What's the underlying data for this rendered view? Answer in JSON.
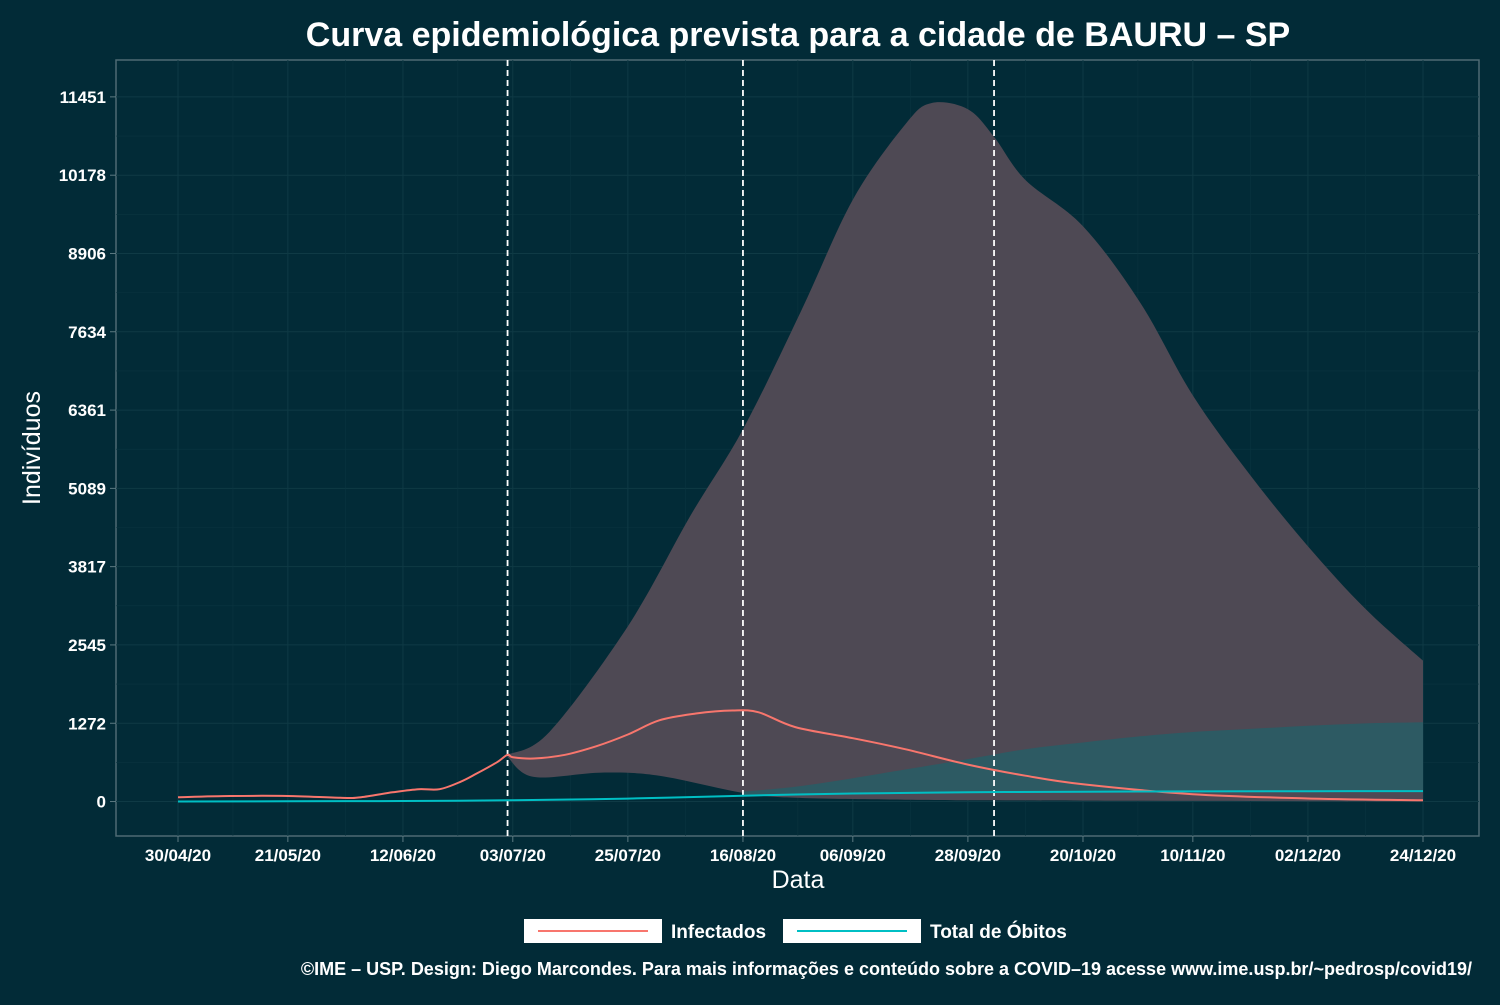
{
  "chart_data": {
    "type": "line",
    "title": "Curva epidemiológica prevista para a cidade de BAURU – SP",
    "xlabel": "Data",
    "ylabel": "Indivíduos",
    "x_tick_labels": [
      "30/04/20",
      "21/05/20",
      "12/06/20",
      "03/07/20",
      "25/07/20",
      "16/08/20",
      "06/09/20",
      "28/09/20",
      "20/10/20",
      "10/11/20",
      "02/12/20",
      "24/12/20"
    ],
    "y_tick_labels": [
      "0",
      "1272",
      "2545",
      "3817",
      "5089",
      "6361",
      "7634",
      "8906",
      "10178",
      "11451"
    ],
    "ylim": [
      -560,
      12050
    ],
    "grid": true,
    "legend_position": "bottom",
    "x_start": "30/04/20",
    "x_end": "24/12/20",
    "vertical_markers": [
      "02/07/20",
      "16/08/20",
      "03/10/20"
    ],
    "series": [
      {
        "name": "Infectados",
        "color": "#f8766d",
        "points": [
          [
            "30/04/20",
            70
          ],
          [
            "10/05/20",
            90
          ],
          [
            "21/05/20",
            90
          ],
          [
            "31/05/20",
            60
          ],
          [
            "04/06/20",
            70
          ],
          [
            "10/06/20",
            150
          ],
          [
            "15/06/20",
            200
          ],
          [
            "19/06/20",
            200
          ],
          [
            "23/06/20",
            320
          ],
          [
            "26/06/20",
            450
          ],
          [
            "30/06/20",
            640
          ],
          [
            "02/07/20",
            760
          ],
          [
            "03/07/20",
            720
          ],
          [
            "07/07/20",
            700
          ],
          [
            "13/07/20",
            760
          ],
          [
            "19/07/20",
            900
          ],
          [
            "25/07/20",
            1090
          ],
          [
            "31/07/20",
            1320
          ],
          [
            "07/08/20",
            1430
          ],
          [
            "14/08/20",
            1480
          ],
          [
            "19/08/20",
            1450
          ],
          [
            "26/08/20",
            1210
          ],
          [
            "06/09/20",
            1030
          ],
          [
            "16/09/20",
            850
          ],
          [
            "28/09/20",
            600
          ],
          [
            "09/10/20",
            420
          ],
          [
            "20/10/20",
            280
          ],
          [
            "10/11/20",
            120
          ],
          [
            "02/12/20",
            50
          ],
          [
            "24/12/20",
            20
          ]
        ]
      },
      {
        "name": "Total de Óbitos",
        "color": "#00bfc4",
        "points": [
          [
            "30/04/20",
            0
          ],
          [
            "21/05/20",
            4
          ],
          [
            "12/06/20",
            8
          ],
          [
            "03/07/20",
            22
          ],
          [
            "25/07/20",
            48
          ],
          [
            "16/08/20",
            95
          ],
          [
            "06/09/20",
            130
          ],
          [
            "28/09/20",
            150
          ],
          [
            "20/10/20",
            160
          ],
          [
            "10/11/20",
            165
          ],
          [
            "02/12/20",
            168
          ],
          [
            "24/12/20",
            170
          ]
        ]
      }
    ],
    "bands": [
      {
        "series": "Infectados",
        "color": "#4e4954",
        "upper": [
          [
            "02/07/20",
            760
          ],
          [
            "10/07/20",
            1130
          ],
          [
            "25/07/20",
            2850
          ],
          [
            "06/08/20",
            4650
          ],
          [
            "16/08/20",
            6050
          ],
          [
            "27/08/20",
            7950
          ],
          [
            "06/09/20",
            9780
          ],
          [
            "16/09/20",
            11000
          ],
          [
            "21/09/20",
            11350
          ],
          [
            "28/09/20",
            11250
          ],
          [
            "03/10/20",
            10800
          ],
          [
            "09/10/20",
            10100
          ],
          [
            "20/10/20",
            9350
          ],
          [
            "31/10/20",
            8100
          ],
          [
            "10/11/20",
            6600
          ],
          [
            "21/11/20",
            5300
          ],
          [
            "02/12/20",
            4150
          ],
          [
            "13/12/20",
            3130
          ],
          [
            "24/12/20",
            2290
          ]
        ],
        "lower": [
          [
            "24/12/20",
            0
          ],
          [
            "02/12/20",
            5
          ],
          [
            "10/11/20",
            10
          ],
          [
            "20/10/20",
            15
          ],
          [
            "03/10/20",
            20
          ],
          [
            "16/09/20",
            30
          ],
          [
            "26/08/20",
            60
          ],
          [
            "16/08/20",
            140
          ],
          [
            "31/07/20",
            420
          ],
          [
            "20/07/20",
            470
          ],
          [
            "07/07/20",
            400
          ],
          [
            "02/07/20",
            720
          ]
        ]
      },
      {
        "series": "Total de Óbitos",
        "color": "#2d5a63",
        "upper": [
          [
            "16/08/20",
            160
          ],
          [
            "26/08/20",
            240
          ],
          [
            "06/09/20",
            380
          ],
          [
            "16/09/20",
            520
          ],
          [
            "28/09/20",
            690
          ],
          [
            "09/10/20",
            850
          ],
          [
            "20/10/20",
            960
          ],
          [
            "31/10/20",
            1060
          ],
          [
            "10/11/20",
            1130
          ],
          [
            "21/11/20",
            1180
          ],
          [
            "02/12/20",
            1230
          ],
          [
            "13/12/20",
            1270
          ],
          [
            "24/12/20",
            1290
          ]
        ],
        "lower": [
          [
            "24/12/20",
            170
          ],
          [
            "02/12/20",
            168
          ],
          [
            "10/11/20",
            165
          ],
          [
            "20/10/20",
            160
          ],
          [
            "28/09/20",
            150
          ],
          [
            "06/09/20",
            130
          ],
          [
            "16/08/20",
            95
          ]
        ]
      }
    ]
  },
  "caption": "©IME – USP. Design: Diego Marcondes. Para mais informações e conteúdo sobre a COVID–19 acesse www.ime.usp.br/~pedrosp/covid19/"
}
